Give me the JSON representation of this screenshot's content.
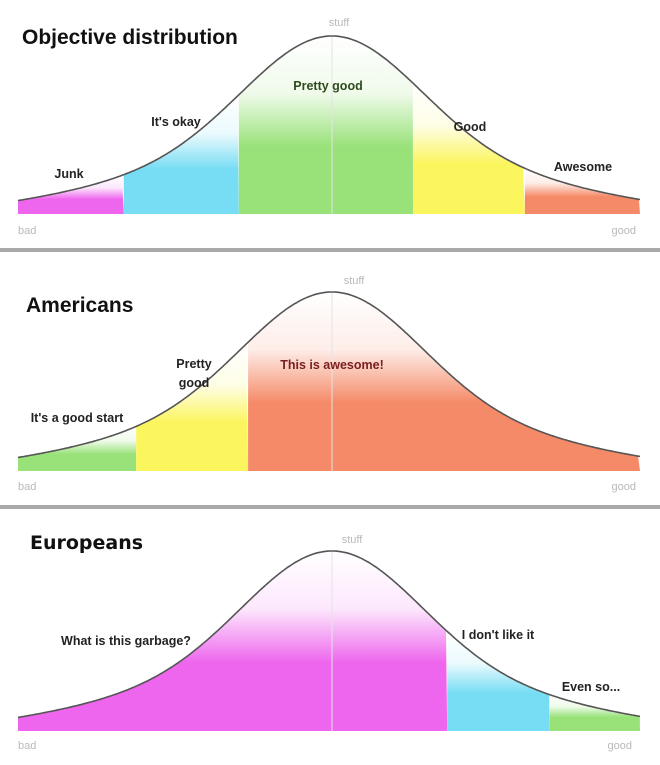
{
  "colors": {
    "magenta": "#ee66ee",
    "cyan": "#77ddf4",
    "green": "#99e27a",
    "yellow": "#fbf55e",
    "orange": "#f58a68",
    "curve": "#555555",
    "axis_text": "#b9b9b9"
  },
  "panels": [
    {
      "title": "Objective distribution",
      "peak_label": "stuff",
      "axis_left": "bad",
      "axis_right": "good",
      "segments": [
        {
          "label": "Junk",
          "color": "magenta",
          "from": 0.0,
          "to": 0.17
        },
        {
          "label": "It's okay",
          "color": "cyan",
          "from": 0.17,
          "to": 0.355
        },
        {
          "label": "Pretty good",
          "color": "green",
          "from": 0.355,
          "to": 0.635
        },
        {
          "label": "Good",
          "color": "yellow",
          "from": 0.635,
          "to": 0.815
        },
        {
          "label": "Awesome",
          "color": "orange",
          "from": 0.815,
          "to": 1.0
        }
      ]
    },
    {
      "title": "Americans",
      "peak_label": "stuff",
      "axis_left": "bad",
      "axis_right": "good",
      "segments": [
        {
          "label": "It's a good start",
          "color": "green",
          "from": 0.0,
          "to": 0.19
        },
        {
          "label": "Pretty good",
          "color": "yellow",
          "from": 0.19,
          "to": 0.37
        },
        {
          "label": "This is awesome!",
          "color": "orange",
          "from": 0.37,
          "to": 1.0
        }
      ]
    },
    {
      "title": "Europeans",
      "peak_label": "stuff",
      "axis_left": "bad",
      "axis_right": "good",
      "segments": [
        {
          "label": "What is this garbage?",
          "color": "magenta",
          "from": 0.0,
          "to": 0.69
        },
        {
          "label": "I don't like it",
          "color": "cyan",
          "from": 0.69,
          "to": 0.855
        },
        {
          "label": "Even so...",
          "color": "green",
          "from": 0.855,
          "to": 1.0
        }
      ]
    }
  ]
}
